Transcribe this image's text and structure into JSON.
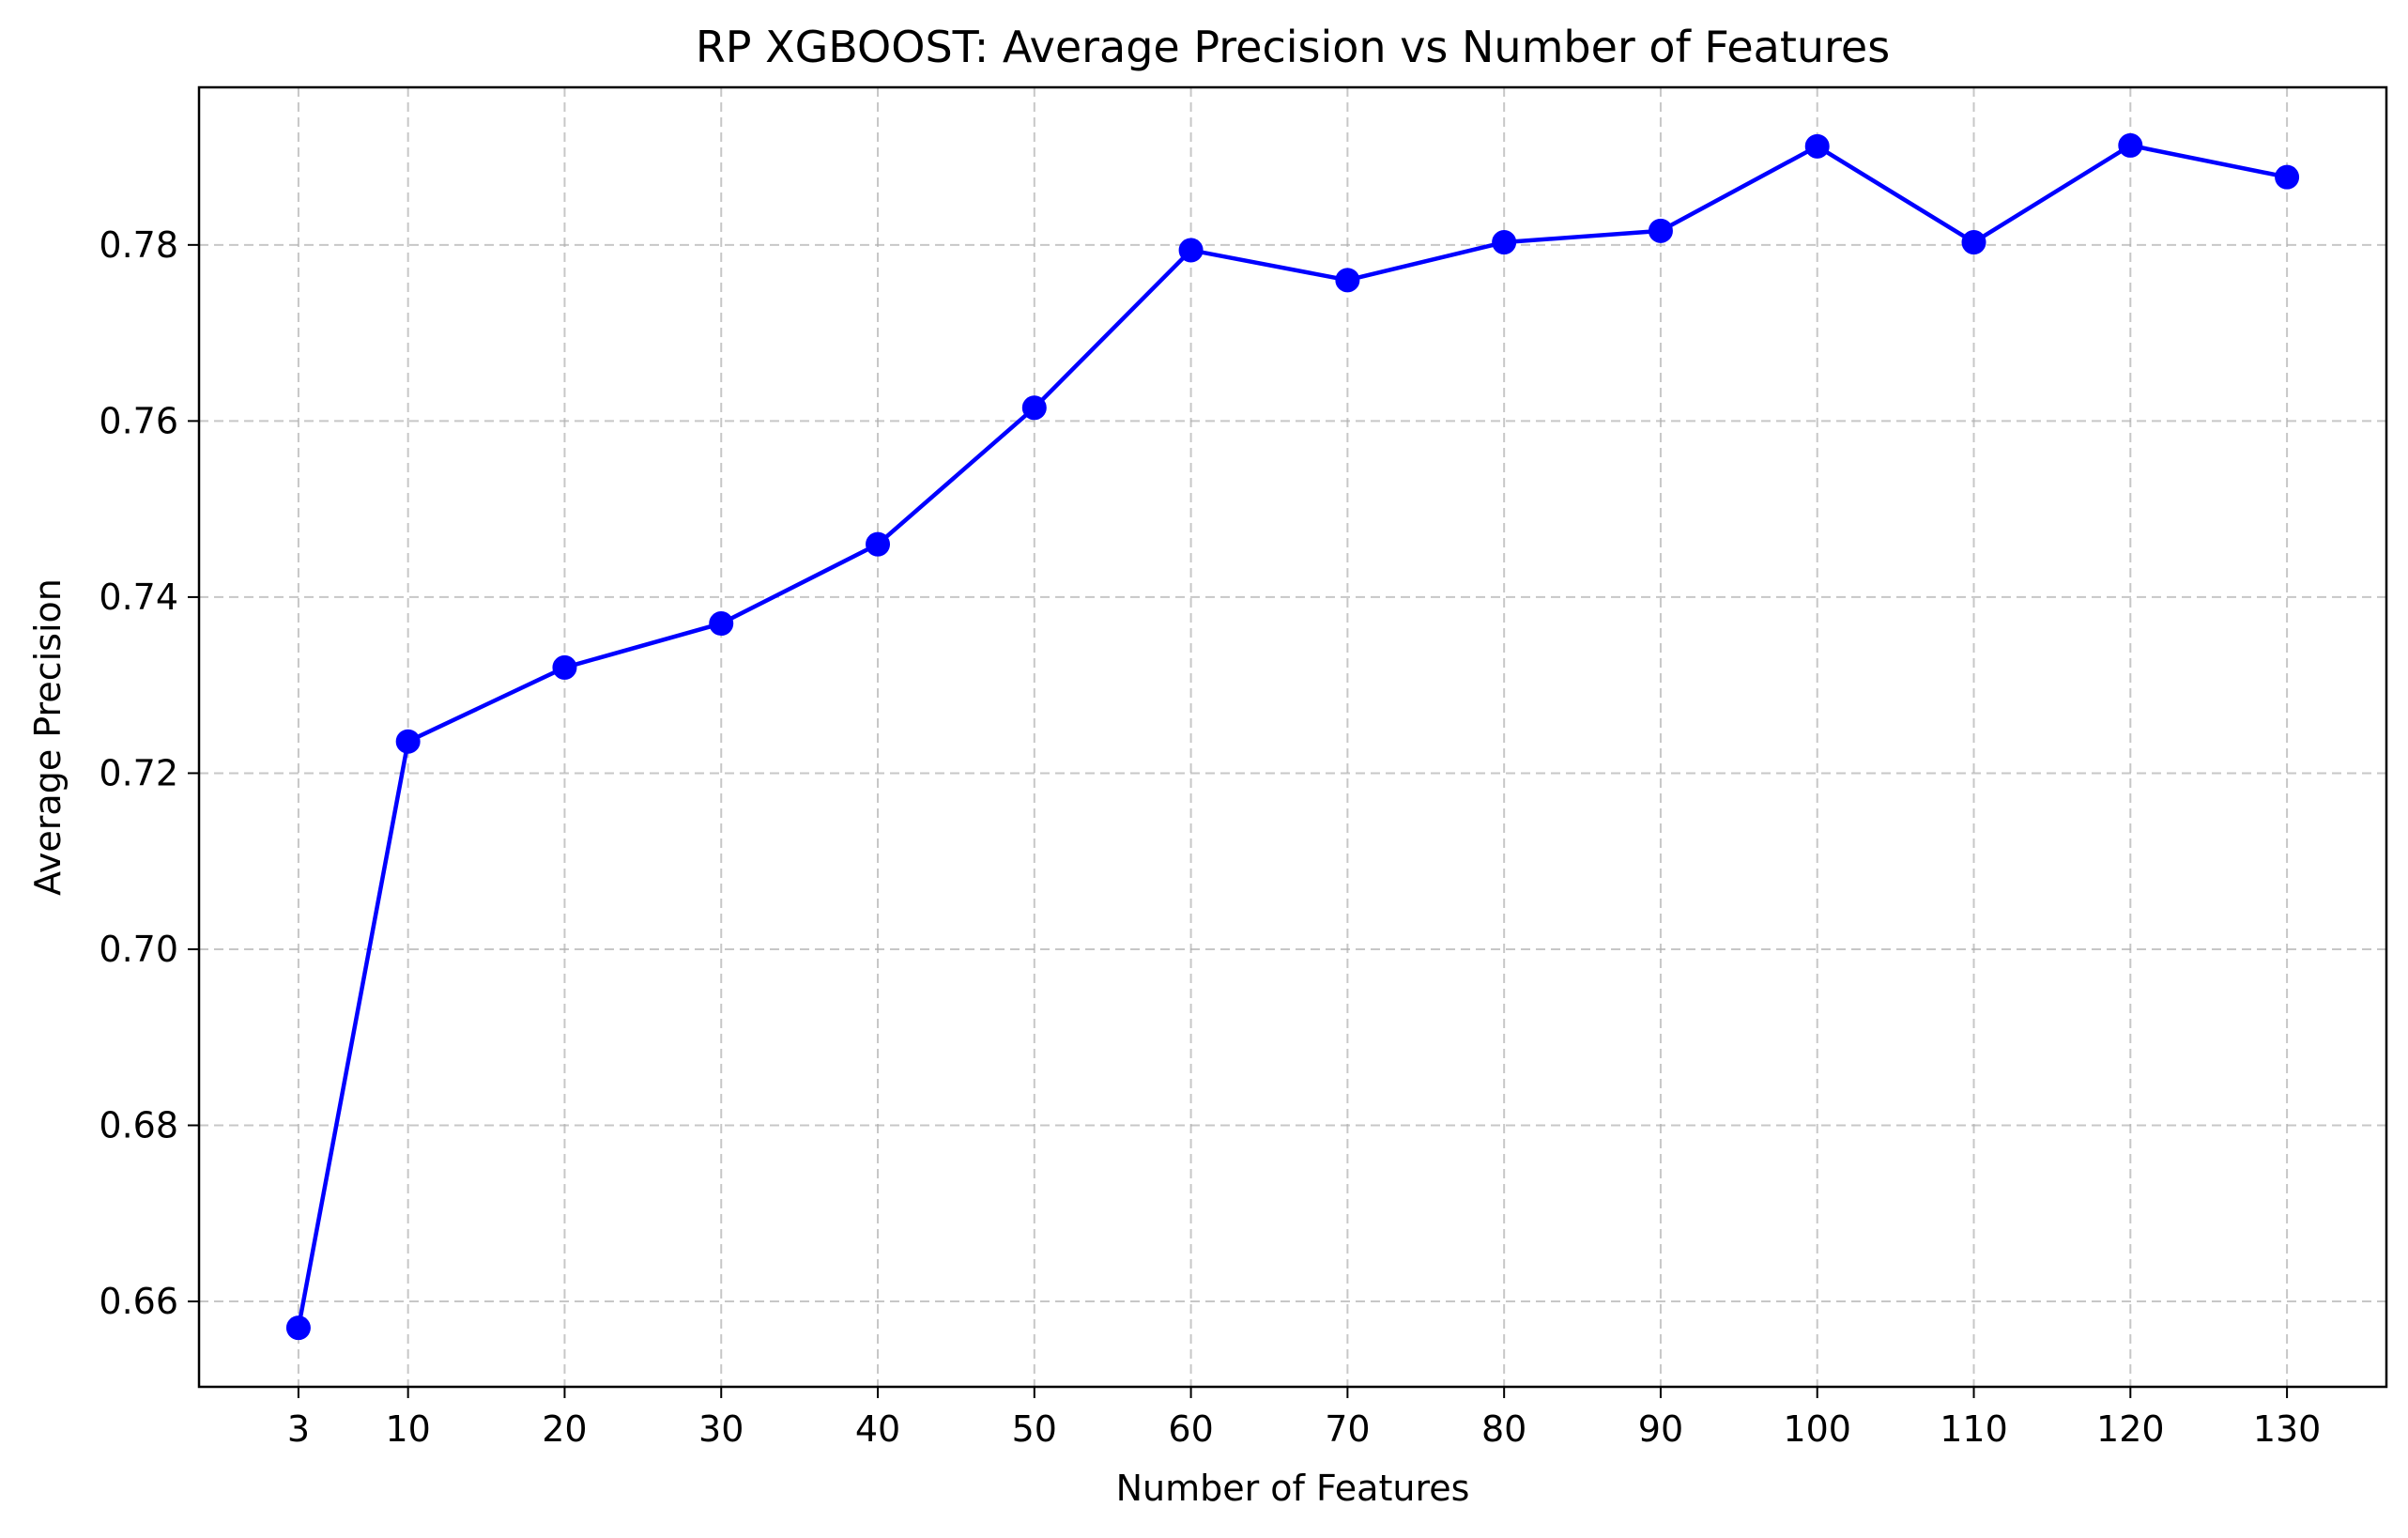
{
  "chart_data": {
    "type": "line",
    "title": "RP XGBOOST: Average Precision vs Number of Features",
    "xlabel": "Number of Features",
    "ylabel": "Average Precision",
    "x": [
      3,
      10,
      20,
      30,
      40,
      50,
      60,
      70,
      80,
      90,
      100,
      110,
      120,
      130
    ],
    "xticks": [
      3,
      10,
      20,
      30,
      40,
      50,
      60,
      70,
      80,
      90,
      100,
      110,
      120,
      130
    ],
    "xtick_labels": [
      "3",
      "10",
      "20",
      "30",
      "40",
      "50",
      "60",
      "70",
      "80",
      "90",
      "100",
      "110",
      "120",
      "130"
    ],
    "yticks": [
      0.66,
      0.68,
      0.7,
      0.72,
      0.74,
      0.76,
      0.78
    ],
    "ytick_labels": [
      "0.66",
      "0.68",
      "0.70",
      "0.72",
      "0.74",
      "0.76",
      "0.78"
    ],
    "xlim": [
      -3.35,
      136.35
    ],
    "ylim": [
      0.6503,
      0.7979
    ],
    "grid": true,
    "series": [
      {
        "color": "#0000ff",
        "marker": "circle",
        "values": [
          0.657,
          0.7236,
          0.732,
          0.737,
          0.746,
          0.7615,
          0.7794,
          0.776,
          0.7803,
          0.7816,
          0.7912,
          0.7803,
          0.7913,
          0.7877
        ]
      }
    ]
  }
}
